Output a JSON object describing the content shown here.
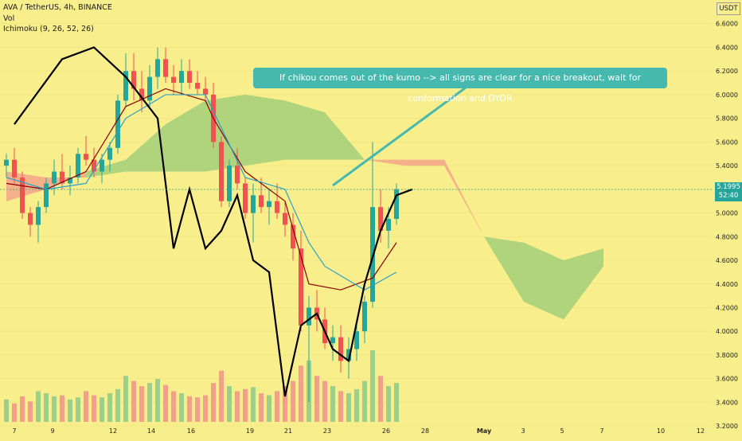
{
  "header": {
    "symbol_line": "AVA / TetherUS, 4h, BINANCE",
    "vol_label": "Vol",
    "ichimoku_label": "Ichimoku (9, 26, 52, 26)"
  },
  "axis_unit": "USDT",
  "last_price": "5.1995",
  "countdown": "52:40",
  "annotation": "If chikou comes out of the kumo --> all signs are clear for a nice breakout, wait for conformation and DYOR",
  "colors": {
    "background": "#f8ee8c",
    "up": "#26a69a",
    "down": "#ef5350",
    "chikou": "#000000",
    "kijun": "#8b0000",
    "tenkan": "#2aa0c8",
    "kumo_bull": "#a6d07a",
    "kumo_bear": "#f4a98a",
    "callout": "#46b9ae"
  },
  "chart_data": {
    "type": "line",
    "subtype": "candlestick with Ichimoku cloud",
    "ylim": [
      3.1,
      6.8
    ],
    "y_ticks": [
      "6.6000",
      "6.4000",
      "6.2000",
      "6.0000",
      "5.8000",
      "5.6000",
      "5.4000",
      "5.2000",
      "5.0000",
      "4.8000",
      "4.6000",
      "4.4000",
      "4.2000",
      "4.0000",
      "3.8000",
      "3.6000",
      "3.4000",
      "3.2000"
    ],
    "x_ticks": [
      "7",
      "9",
      "12",
      "14",
      "16",
      "19",
      "21",
      "23",
      "26",
      "28",
      "May",
      "3",
      "5",
      "7",
      "10",
      "12"
    ],
    "candles": [
      {
        "x": 0,
        "o": 5.4,
        "h": 5.5,
        "l": 5.3,
        "c": 5.45
      },
      {
        "x": 1,
        "o": 5.45,
        "h": 5.55,
        "l": 5.25,
        "c": 5.3
      },
      {
        "x": 2,
        "o": 5.3,
        "h": 5.35,
        "l": 4.95,
        "c": 5.0
      },
      {
        "x": 3,
        "o": 5.0,
        "h": 5.05,
        "l": 4.8,
        "c": 4.9
      },
      {
        "x": 4,
        "o": 4.9,
        "h": 5.1,
        "l": 4.75,
        "c": 5.05
      },
      {
        "x": 5,
        "o": 5.05,
        "h": 5.3,
        "l": 5.0,
        "c": 5.25
      },
      {
        "x": 6,
        "o": 5.25,
        "h": 5.45,
        "l": 5.15,
        "c": 5.35
      },
      {
        "x": 7,
        "o": 5.35,
        "h": 5.5,
        "l": 5.2,
        "c": 5.25
      },
      {
        "x": 8,
        "o": 5.25,
        "h": 5.4,
        "l": 5.15,
        "c": 5.3
      },
      {
        "x": 9,
        "o": 5.3,
        "h": 5.55,
        "l": 5.25,
        "c": 5.5
      },
      {
        "x": 10,
        "o": 5.5,
        "h": 5.65,
        "l": 5.4,
        "c": 5.45
      },
      {
        "x": 11,
        "o": 5.45,
        "h": 5.55,
        "l": 5.3,
        "c": 5.35
      },
      {
        "x": 12,
        "o": 5.35,
        "h": 5.5,
        "l": 5.25,
        "c": 5.45
      },
      {
        "x": 13,
        "o": 5.45,
        "h": 5.6,
        "l": 5.35,
        "c": 5.55
      },
      {
        "x": 14,
        "o": 5.55,
        "h": 6.0,
        "l": 5.5,
        "c": 5.95
      },
      {
        "x": 15,
        "o": 5.95,
        "h": 6.35,
        "l": 5.9,
        "c": 6.2
      },
      {
        "x": 16,
        "o": 6.2,
        "h": 6.35,
        "l": 5.95,
        "c": 6.05
      },
      {
        "x": 17,
        "o": 6.05,
        "h": 6.2,
        "l": 5.85,
        "c": 5.95
      },
      {
        "x": 18,
        "o": 5.95,
        "h": 6.25,
        "l": 5.9,
        "c": 6.15
      },
      {
        "x": 19,
        "o": 6.15,
        "h": 6.4,
        "l": 6.05,
        "c": 6.3
      },
      {
        "x": 20,
        "o": 6.3,
        "h": 6.4,
        "l": 6.1,
        "c": 6.15
      },
      {
        "x": 21,
        "o": 6.15,
        "h": 6.25,
        "l": 6.0,
        "c": 6.1
      },
      {
        "x": 22,
        "o": 6.1,
        "h": 6.3,
        "l": 6.0,
        "c": 6.2
      },
      {
        "x": 23,
        "o": 6.2,
        "h": 6.3,
        "l": 6.05,
        "c": 6.1
      },
      {
        "x": 24,
        "o": 6.1,
        "h": 6.2,
        "l": 6.0,
        "c": 6.05
      },
      {
        "x": 25,
        "o": 6.05,
        "h": 6.15,
        "l": 5.95,
        "c": 6.0
      },
      {
        "x": 26,
        "o": 6.0,
        "h": 6.1,
        "l": 5.55,
        "c": 5.6
      },
      {
        "x": 27,
        "o": 5.6,
        "h": 5.65,
        "l": 5.05,
        "c": 5.1
      },
      {
        "x": 28,
        "o": 5.1,
        "h": 5.45,
        "l": 5.05,
        "c": 5.4
      },
      {
        "x": 29,
        "o": 5.4,
        "h": 5.55,
        "l": 5.2,
        "c": 5.25
      },
      {
        "x": 30,
        "o": 5.25,
        "h": 5.3,
        "l": 4.95,
        "c": 5.0
      },
      {
        "x": 31,
        "o": 5.0,
        "h": 5.25,
        "l": 4.75,
        "c": 5.15
      },
      {
        "x": 32,
        "o": 5.15,
        "h": 5.3,
        "l": 5.0,
        "c": 5.05
      },
      {
        "x": 33,
        "o": 5.05,
        "h": 5.2,
        "l": 4.9,
        "c": 5.1
      },
      {
        "x": 34,
        "o": 5.1,
        "h": 5.25,
        "l": 4.95,
        "c": 5.0
      },
      {
        "x": 35,
        "o": 5.0,
        "h": 5.1,
        "l": 4.8,
        "c": 4.9
      },
      {
        "x": 36,
        "o": 4.9,
        "h": 5.0,
        "l": 4.6,
        "c": 4.7
      },
      {
        "x": 37,
        "o": 4.7,
        "h": 4.85,
        "l": 4.0,
        "c": 4.05
      },
      {
        "x": 38,
        "o": 4.05,
        "h": 4.3,
        "l": 3.4,
        "c": 4.2
      },
      {
        "x": 39,
        "o": 4.2,
        "h": 4.35,
        "l": 4.0,
        "c": 4.1
      },
      {
        "x": 40,
        "o": 4.1,
        "h": 4.2,
        "l": 3.85,
        "c": 3.9
      },
      {
        "x": 41,
        "o": 3.9,
        "h": 4.05,
        "l": 3.75,
        "c": 3.95
      },
      {
        "x": 42,
        "o": 3.95,
        "h": 4.05,
        "l": 3.65,
        "c": 3.75
      },
      {
        "x": 43,
        "o": 3.75,
        "h": 3.95,
        "l": 3.6,
        "c": 3.85
      },
      {
        "x": 44,
        "o": 3.85,
        "h": 4.05,
        "l": 3.75,
        "c": 4.0
      },
      {
        "x": 45,
        "o": 4.0,
        "h": 4.3,
        "l": 3.9,
        "c": 4.25
      },
      {
        "x": 46,
        "o": 4.25,
        "h": 5.6,
        "l": 4.2,
        "c": 5.05
      },
      {
        "x": 47,
        "o": 5.05,
        "h": 5.2,
        "l": 4.75,
        "c": 4.85
      },
      {
        "x": 48,
        "o": 4.85,
        "h": 5.05,
        "l": 4.7,
        "c": 4.95
      },
      {
        "x": 49,
        "o": 4.95,
        "h": 5.25,
        "l": 4.9,
        "c": 5.2
      }
    ],
    "volume": [
      22,
      18,
      25,
      20,
      30,
      28,
      25,
      26,
      22,
      24,
      30,
      26,
      24,
      28,
      32,
      45,
      40,
      35,
      38,
      42,
      36,
      30,
      28,
      25,
      24,
      26,
      38,
      50,
      35,
      30,
      32,
      34,
      28,
      26,
      30,
      35,
      40,
      55,
      60,
      45,
      40,
      35,
      30,
      28,
      32,
      40,
      70,
      45,
      35,
      38
    ],
    "series": [
      {
        "x": [
          0,
          5,
          10,
          15,
          20,
          25,
          26,
          30,
          35,
          38,
          42,
          46,
          49
        ],
        "values": [
          5.25,
          5.2,
          5.35,
          5.9,
          6.05,
          5.95,
          5.8,
          5.35,
          5.1,
          4.4,
          4.35,
          4.45,
          4.75
        ]
      },
      {
        "x": [
          0,
          5,
          10,
          15,
          20,
          25,
          30,
          35,
          38,
          40,
          45,
          49
        ],
        "values": [
          5.3,
          5.2,
          5.25,
          5.8,
          6.0,
          6.0,
          5.3,
          5.2,
          4.75,
          4.55,
          4.35,
          4.5
        ]
      },
      {
        "x": [
          -26,
          -20,
          -16,
          -12,
          -8,
          -6,
          -4,
          -2,
          0,
          2,
          4,
          6,
          8,
          10,
          12,
          14,
          16,
          18,
          20,
          22,
          24
        ],
        "values": [
          5.75,
          6.3,
          6.4,
          6.15,
          5.8,
          4.7,
          5.2,
          4.7,
          4.85,
          5.15,
          4.6,
          4.5,
          3.45,
          4.05,
          4.15,
          3.85,
          3.75,
          4.4,
          4.85,
          5.15,
          5.2
        ]
      }
    ],
    "kumo": {
      "x": [
        0,
        5,
        10,
        15,
        20,
        25,
        30,
        35,
        40,
        45,
        50,
        55,
        60,
        65,
        70,
        75
      ],
      "span_a": [
        5.1,
        5.2,
        5.35,
        5.45,
        5.75,
        5.95,
        6.0,
        5.95,
        5.85,
        5.45,
        5.4,
        5.4,
        4.8,
        4.75,
        4.6,
        4.7
      ],
      "span_b": [
        5.35,
        5.3,
        5.3,
        5.35,
        5.35,
        5.35,
        5.4,
        5.45,
        5.45,
        5.45,
        5.45,
        5.45,
        4.8,
        4.25,
        4.1,
        4.55
      ]
    }
  }
}
